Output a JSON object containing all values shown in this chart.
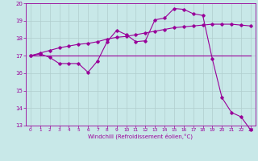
{
  "background_color": "#c8e8e8",
  "line_color": "#990099",
  "xlim": [
    -0.5,
    23.5
  ],
  "ylim": [
    13,
    20
  ],
  "yticks": [
    13,
    14,
    15,
    16,
    17,
    18,
    19,
    20
  ],
  "xticks": [
    0,
    1,
    2,
    3,
    4,
    5,
    6,
    7,
    8,
    9,
    10,
    11,
    12,
    13,
    14,
    15,
    16,
    17,
    18,
    19,
    20,
    21,
    22,
    23
  ],
  "xlabel": "Windchill (Refroidissement éolien,°C)",
  "grid_color": "#b0cece",
  "line1_x": [
    0,
    1,
    2,
    3,
    4,
    5,
    6,
    7,
    8,
    9,
    10,
    11,
    12,
    13,
    14,
    15,
    16,
    17,
    18,
    19,
    20,
    21,
    22,
    23
  ],
  "line1_y": [
    17.0,
    17.1,
    16.9,
    16.55,
    16.55,
    16.55,
    16.05,
    16.7,
    17.8,
    18.45,
    18.2,
    17.8,
    17.85,
    19.05,
    19.15,
    19.7,
    19.65,
    19.4,
    19.3,
    16.8,
    14.6,
    13.75,
    13.5,
    12.75
  ],
  "line2_x": [
    0,
    1,
    2,
    3,
    4,
    5,
    6,
    7,
    8,
    9,
    10,
    11,
    12,
    13,
    14,
    15,
    16,
    17,
    18,
    19,
    20,
    21,
    22,
    23
  ],
  "line2_y": [
    17.0,
    17.15,
    17.3,
    17.45,
    17.55,
    17.65,
    17.7,
    17.8,
    17.95,
    18.05,
    18.1,
    18.2,
    18.3,
    18.4,
    18.5,
    18.6,
    18.65,
    18.7,
    18.75,
    18.8,
    18.8,
    18.8,
    18.75,
    18.7
  ],
  "line3_x": [
    0,
    23
  ],
  "line3_y": [
    17.0,
    17.0
  ]
}
